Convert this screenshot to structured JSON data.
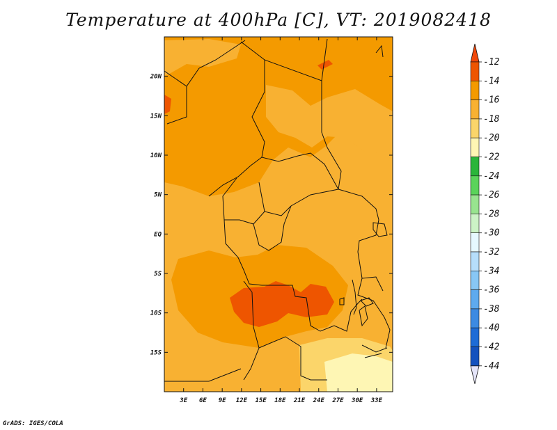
{
  "chart_data": {
    "type": "heatmap",
    "title": "Temperature at 400hPa [C], VT: 2019082418",
    "variable": "Temperature at 400hPa",
    "units": "C",
    "valid_time": "2019082418",
    "xlabel": "",
    "ylabel": "",
    "x_axis": {
      "range": [
        0,
        35.5
      ],
      "ticks": [
        3,
        6,
        9,
        12,
        15,
        18,
        21,
        24,
        27,
        30,
        33
      ],
      "tick_labels": [
        "3E",
        "6E",
        "9E",
        "12E",
        "15E",
        "18E",
        "21E",
        "24E",
        "27E",
        "30E",
        "33E"
      ]
    },
    "y_axis": {
      "range": [
        -20,
        25
      ],
      "ticks": [
        20,
        15,
        10,
        5,
        0,
        -5,
        -10,
        -15
      ],
      "tick_labels": [
        "20N",
        "15N",
        "10N",
        "5N",
        "EQ",
        "5S",
        "10S",
        "15S"
      ]
    },
    "colorbar": {
      "levels": [
        -12,
        -14,
        -16,
        -18,
        -20,
        -22,
        -24,
        -26,
        -28,
        -30,
        -32,
        -34,
        -36,
        -38,
        -40,
        -42,
        -44
      ],
      "level_labels": [
        "-12",
        "-14",
        "-16",
        "-18",
        "-20",
        "-22",
        "-24",
        "-26",
        "-28",
        "-30",
        "-32",
        "-34",
        "-36",
        "-38",
        "-40",
        "-42",
        "-44"
      ],
      "colors": [
        "#ee5500",
        "#f49a00",
        "#f8b132",
        "#fbd56a",
        "#fef6b4",
        "#2ab53a",
        "#5ad35a",
        "#98e48f",
        "#ccf3c6",
        "#e6f8ff",
        "#b6defb",
        "#88c7f5",
        "#5eaaee",
        "#3c8ae2",
        "#1e6cd6",
        "#1452be",
        "#0b1f80"
      ],
      "over_color": "#f0480a",
      "under_color": "#e4e4f8"
    },
    "fields": [
      {
        "label": "-16 to -14",
        "value": -15,
        "color": "#f49a00",
        "region": "northern Sahel/Sahara band (Chad, Sudan, Niger) and northwest"
      },
      {
        "label": "-18 to -16",
        "value": -17,
        "color": "#f8b132",
        "region": "Congo basin, Gulf of Guinea, east Africa"
      },
      {
        "label": "-14 to -12",
        "value": -13,
        "color": "#ee5500",
        "region": "central Angola / southern DR Congo warm core near 10S"
      },
      {
        "label": "-20 to -18",
        "value": -19,
        "color": "#fbd56a",
        "region": "Zambia / southern edge"
      },
      {
        "label": "-22 to -20",
        "value": -21,
        "color": "#fef6b4",
        "region": "far south-east corner"
      }
    ]
  },
  "footer": {
    "credit": "GrADS: IGES/COLA"
  }
}
